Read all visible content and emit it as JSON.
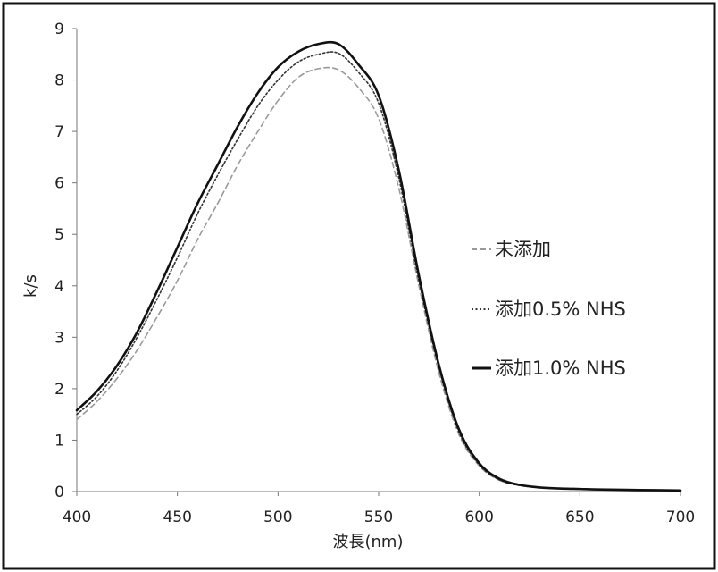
{
  "chart_data": {
    "type": "line",
    "title": "",
    "xlabel": "波長(nm)",
    "ylabel": "k/s",
    "xlim": [
      400,
      700
    ],
    "ylim": [
      0,
      9
    ],
    "xticks": [
      400,
      450,
      500,
      550,
      600,
      650,
      700
    ],
    "yticks": [
      0,
      1,
      2,
      3,
      4,
      5,
      6,
      7,
      8,
      9
    ],
    "grid": false,
    "legend": "right",
    "x": [
      400,
      410,
      420,
      430,
      440,
      450,
      460,
      470,
      480,
      490,
      500,
      510,
      520,
      530,
      540,
      550,
      560,
      570,
      580,
      590,
      600,
      610,
      620,
      630,
      640,
      650,
      660,
      680,
      700
    ],
    "series": [
      {
        "name": "未添加",
        "style": "dashed",
        "color": "#9a9a9a",
        "values": [
          1.4,
          1.75,
          2.2,
          2.75,
          3.4,
          4.1,
          4.9,
          5.6,
          6.35,
          7.0,
          7.6,
          8.05,
          8.22,
          8.2,
          7.85,
          7.25,
          5.9,
          4.0,
          2.3,
          1.1,
          0.5,
          0.22,
          0.12,
          0.08,
          0.06,
          0.05,
          0.04,
          0.03,
          0.02
        ]
      },
      {
        "name": "添加0.5% NHS",
        "style": "dotted",
        "color": "#333333",
        "values": [
          1.5,
          1.85,
          2.35,
          3.0,
          3.75,
          4.55,
          5.4,
          6.15,
          6.85,
          7.5,
          8.0,
          8.35,
          8.5,
          8.52,
          8.15,
          7.55,
          6.1,
          4.1,
          2.4,
          1.15,
          0.52,
          0.23,
          0.12,
          0.08,
          0.06,
          0.05,
          0.04,
          0.03,
          0.02
        ]
      },
      {
        "name": "添加1.0% NHS",
        "style": "solid",
        "color": "#111111",
        "values": [
          1.58,
          1.95,
          2.45,
          3.1,
          3.9,
          4.75,
          5.6,
          6.35,
          7.1,
          7.75,
          8.25,
          8.55,
          8.7,
          8.7,
          8.3,
          7.7,
          6.25,
          4.2,
          2.45,
          1.2,
          0.55,
          0.25,
          0.13,
          0.08,
          0.06,
          0.05,
          0.04,
          0.03,
          0.02
        ]
      }
    ]
  }
}
